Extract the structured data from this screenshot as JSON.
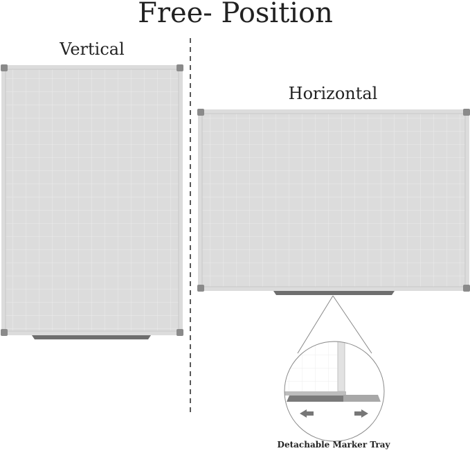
{
  "title": "Free- Position",
  "vertical_label": "Vertical",
  "horizontal_label": "Horizontal",
  "caption": "Detachable Marker Tray",
  "colors": {
    "frame": "#d8d8d8",
    "corner": "#8a8a8a",
    "grid": "#ececec",
    "tray": "#6e6e6e"
  }
}
